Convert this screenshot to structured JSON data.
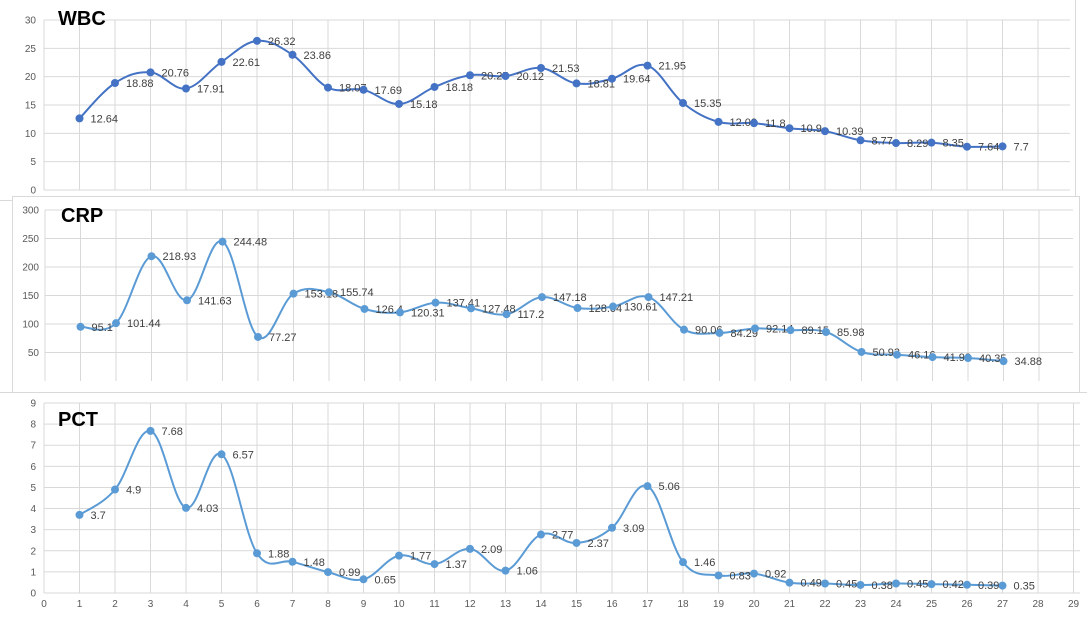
{
  "chart_data": [
    {
      "type": "line",
      "title": "WBC",
      "color": "#4472C4",
      "x": [
        1,
        2,
        3,
        4,
        5,
        6,
        7,
        8,
        9,
        10,
        11,
        12,
        13,
        14,
        15,
        16,
        17,
        18,
        19,
        20,
        21,
        22,
        23,
        24,
        25,
        26,
        27
      ],
      "values": [
        12.64,
        18.88,
        20.76,
        17.91,
        22.61,
        26.32,
        23.86,
        18.07,
        17.69,
        15.18,
        18.18,
        20.25,
        20.12,
        21.53,
        18.81,
        19.64,
        21.95,
        15.35,
        12.02,
        11.8,
        10.9,
        10.39,
        8.77,
        8.29,
        8.35,
        7.64,
        7.7
      ],
      "labels": [
        "12.64",
        "18.88",
        "20.76",
        "17.91",
        "22.61",
        "26.32",
        "23.86",
        "18.07",
        "17.69",
        "15.18",
        "18.18",
        "20.25",
        "20.12",
        "21.53",
        "18.81",
        "19.64",
        "21.95",
        "15.35",
        "12.02",
        "11.8",
        "10.9",
        "10.39",
        "8.77",
        "8.29",
        "8.35",
        "7.64",
        "7.7"
      ],
      "ylim": [
        0,
        30
      ],
      "yticks": [
        "0",
        "5",
        "10",
        "15",
        "20",
        "25",
        "30"
      ],
      "grid": true,
      "smooth": true
    },
    {
      "type": "line",
      "title": "CRP",
      "color": "#5B9BD5",
      "x": [
        1,
        2,
        3,
        4,
        5,
        6,
        7,
        8,
        9,
        10,
        11,
        12,
        13,
        14,
        15,
        16,
        17,
        18,
        19,
        20,
        21,
        22,
        23,
        24,
        25,
        26,
        27
      ],
      "values": [
        95.1,
        101.44,
        218.93,
        141.63,
        244.48,
        77.27,
        153.18,
        155.74,
        126.4,
        120.31,
        137.41,
        127.48,
        117.2,
        147.18,
        128.04,
        130.61,
        147.21,
        90.06,
        84.29,
        92.14,
        89.15,
        85.98,
        50.93,
        46.16,
        41.98,
        40.35,
        34.88
      ],
      "labels": [
        "95.1",
        "101.44",
        "218.93",
        "141.63",
        "244.48",
        "77.27",
        "153.18",
        "155.74",
        "126.4",
        "120.31",
        "137.41",
        "127.48",
        "117.2",
        "147.18",
        "128.04",
        "130.61",
        "147.21",
        "90.06",
        "84.29",
        "92.14",
        "89.15",
        "85.98",
        "50.93",
        "46.16",
        "41.98",
        "40.35",
        "34.88"
      ],
      "ylim": [
        0,
        300
      ],
      "yticks": [
        "50",
        "100",
        "150",
        "200",
        "250",
        "300"
      ],
      "grid": true,
      "smooth": true
    },
    {
      "type": "line",
      "title": "PCT",
      "color": "#5B9BD5",
      "x": [
        1,
        2,
        3,
        4,
        5,
        6,
        7,
        8,
        9,
        10,
        11,
        12,
        13,
        14,
        15,
        16,
        17,
        18,
        19,
        20,
        21,
        22,
        23,
        24,
        25,
        26,
        27
      ],
      "values": [
        3.7,
        4.9,
        7.68,
        4.03,
        6.57,
        1.88,
        1.48,
        0.99,
        0.65,
        1.77,
        1.37,
        2.09,
        1.06,
        2.77,
        2.37,
        3.09,
        5.06,
        1.46,
        0.83,
        0.92,
        0.49,
        0.45,
        0.38,
        0.45,
        0.42,
        0.39,
        0.35
      ],
      "labels": [
        "3.7",
        "4.9",
        "7.68",
        "4.03",
        "6.57",
        "1.88",
        "1.48",
        "0.99",
        "0.65",
        "1.77",
        "1.37",
        "2.09",
        "1.06",
        "2.77",
        "2.37",
        "3.09",
        "5.06",
        "1.46",
        "0.83",
        "0.92",
        "0.49",
        "0.45",
        "0.38",
        "0.45",
        "0.42",
        "0.39",
        "0.35"
      ],
      "ylim": [
        0,
        9
      ],
      "yticks": [
        "0",
        "1",
        "2",
        "3",
        "4",
        "5",
        "6",
        "7",
        "8",
        "9"
      ],
      "xticks": [
        "0",
        "1",
        "2",
        "3",
        "4",
        "5",
        "6",
        "7",
        "8",
        "9",
        "10",
        "11",
        "12",
        "13",
        "14",
        "15",
        "16",
        "17",
        "18",
        "19",
        "20",
        "21",
        "22",
        "23",
        "24",
        "25",
        "26",
        "27",
        "28",
        "29"
      ],
      "grid": true,
      "smooth": true
    }
  ]
}
